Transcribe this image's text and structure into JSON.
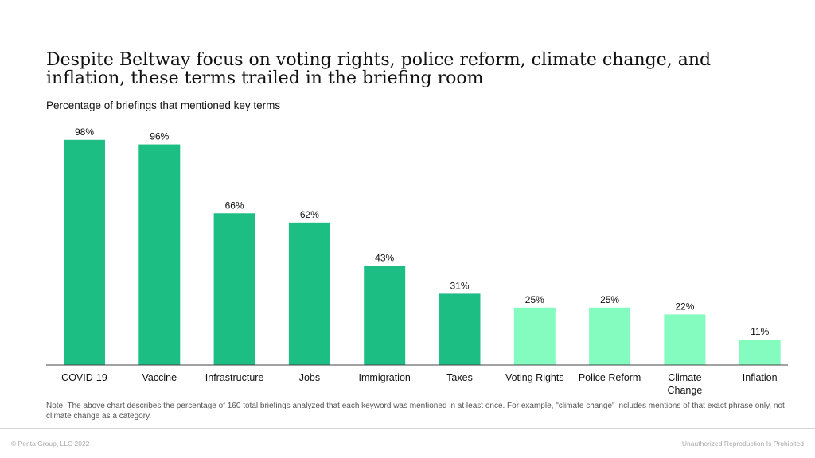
{
  "header": {
    "title": "Despite Beltway focus on voting rights, police reform, climate change, and inflation, these terms trailed in the briefing room",
    "subtitle": "Percentage of briefings that mentioned key terms"
  },
  "chart_data": {
    "type": "bar",
    "title": "Despite Beltway focus on voting rights, police reform, climate change, and inflation, these terms trailed in the briefing room",
    "subtitle": "Percentage of briefings that mentioned key terms",
    "xlabel": "",
    "ylabel": "",
    "ylim": [
      0,
      100
    ],
    "grid": false,
    "legend": "none",
    "categories": [
      "COVID-19",
      "Vaccine",
      "Infrastructure",
      "Jobs",
      "Immigration",
      "Taxes",
      "Voting Rights",
      "Police Reform",
      "Climate Change",
      "Inflation"
    ],
    "values": [
      98,
      96,
      66,
      62,
      43,
      31,
      25,
      25,
      22,
      11
    ],
    "data_labels": [
      "98%",
      "96%",
      "66%",
      "62%",
      "43%",
      "31%",
      "25%",
      "25%",
      "22%",
      "11%"
    ],
    "bar_colors": [
      "#1dbe83",
      "#1dbe83",
      "#1dbe83",
      "#1dbe83",
      "#1dbe83",
      "#1dbe83",
      "#84fbbf",
      "#84fbbf",
      "#84fbbf",
      "#84fbbf"
    ]
  },
  "note": "Note: The above chart describes the percentage of 160 total briefings analyzed that each keyword was mentioned in at least once. For example, \"climate change\" includes mentions of that exact phrase only, not climate change as a category.",
  "footer": {
    "copyright": "© Penta Group, LLC 2022",
    "disclaimer": "Unauthorized Reproduction Is Prohibited"
  }
}
